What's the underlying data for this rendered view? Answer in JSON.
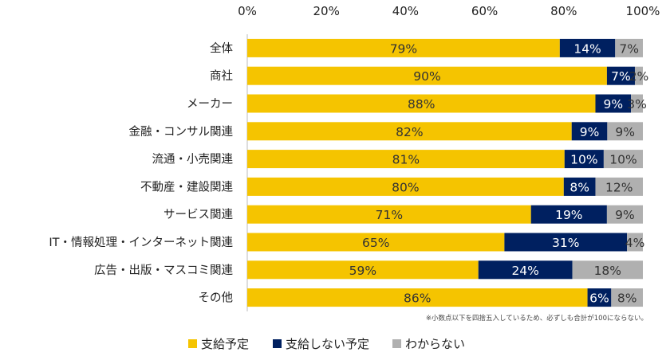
{
  "chart_data": {
    "type": "bar",
    "orientation": "horizontal",
    "stacked": true,
    "xlim": [
      0,
      100
    ],
    "x_ticks": [
      "0%",
      "20%",
      "40%",
      "60%",
      "80%",
      "100%"
    ],
    "categories": [
      "全体",
      "商社",
      "メーカー",
      "金融・コンサル関連",
      "流通・小売関連",
      "不動産・建設関連",
      "サービス関連",
      "IT・情報処理・インターネット関連",
      "広告・出版・マスコミ関連",
      "その他"
    ],
    "series": [
      {
        "name": "支給予定",
        "color": "#F5C400",
        "values": [
          79,
          90,
          88,
          82,
          81,
          80,
          71,
          65,
          59,
          86
        ]
      },
      {
        "name": "支給しない予定",
        "color": "#002060",
        "values": [
          14,
          7,
          9,
          9,
          10,
          8,
          19,
          31,
          24,
          6
        ]
      },
      {
        "name": "わからない",
        "color": "#B0B0B0",
        "values": [
          7,
          2,
          3,
          9,
          10,
          12,
          9,
          4,
          18,
          8
        ]
      }
    ],
    "note": "※小数点以下を四捨五入しているため、必ずしも合計が100にならない。",
    "legend_position": "bottom",
    "grid": false
  }
}
